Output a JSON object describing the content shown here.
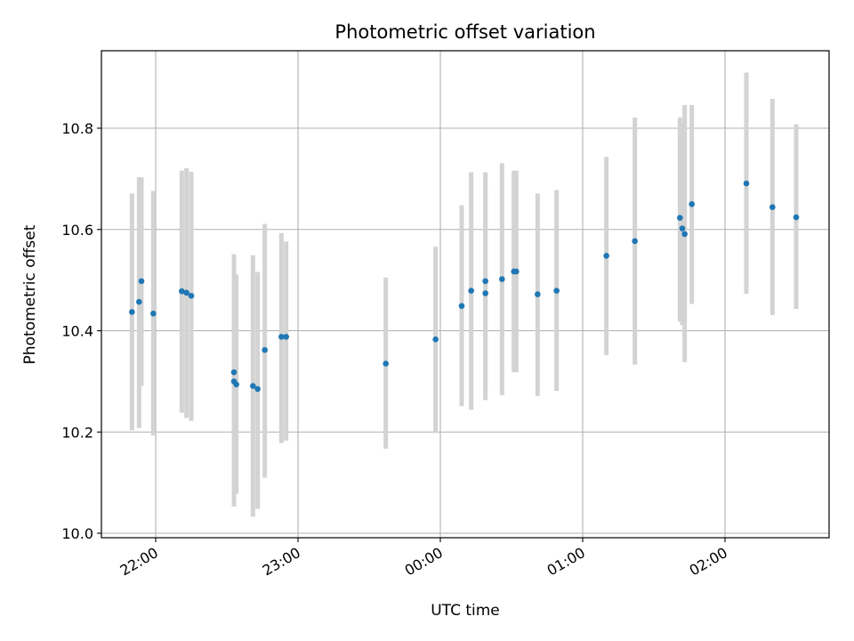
{
  "chart_data": {
    "type": "scatter",
    "title": "Photometric offset variation",
    "xlabel": "UTC time",
    "ylabel": "Photometric offset",
    "x_ticks": [
      "22:00",
      "23:00",
      "00:00",
      "01:00",
      "02:00"
    ],
    "y_ticks": [
      "10.0",
      "10.2",
      "10.4",
      "10.6",
      "10.8"
    ],
    "y_tick_values": [
      10.0,
      10.2,
      10.4,
      10.6,
      10.8
    ],
    "grid": true,
    "colors": {
      "point": "#1f77b4",
      "errorbar": "#d3d3d3",
      "grid": "#b0b0b0"
    },
    "series": [
      {
        "x": [
          "21:50",
          "21:53",
          "21:54",
          "21:59",
          "22:11",
          "22:13",
          "22:15",
          "22:33",
          "22:33",
          "22:34",
          "22:41",
          "22:43",
          "22:46",
          "22:53",
          "22:55",
          "23:37",
          "23:58",
          "00:09",
          "00:13",
          "00:19",
          "00:19",
          "00:26",
          "00:31",
          "00:32",
          "00:41",
          "00:49",
          "01:10",
          "01:22",
          "01:41",
          "01:42",
          "01:43",
          "01:46",
          "02:09",
          "02:20",
          "02:30"
        ],
        "y": [
          10.437,
          10.457,
          10.498,
          10.434,
          10.478,
          10.475,
          10.469,
          10.318,
          10.3,
          10.294,
          10.291,
          10.285,
          10.362,
          10.388,
          10.388,
          10.335,
          10.383,
          10.449,
          10.479,
          10.474,
          10.498,
          10.502,
          10.517,
          10.517,
          10.472,
          10.479,
          10.548,
          10.577,
          10.623,
          10.602,
          10.591,
          10.65,
          10.691,
          10.644,
          10.624
        ],
        "yerr_low": [
          10.203,
          10.208,
          10.291,
          10.193,
          10.238,
          10.228,
          10.222,
          10.053,
          10.078,
          10.078,
          10.033,
          10.048,
          10.11,
          10.178,
          10.183,
          10.167,
          10.198,
          10.251,
          10.244,
          10.263,
          10.283,
          10.273,
          10.318,
          10.318,
          10.271,
          10.281,
          10.352,
          10.333,
          10.418,
          10.411,
          10.338,
          10.453,
          10.473,
          10.431,
          10.443
        ],
        "yerr_high": [
          10.671,
          10.703,
          10.703,
          10.676,
          10.716,
          10.721,
          10.714,
          10.551,
          10.511,
          10.511,
          10.549,
          10.516,
          10.611,
          10.593,
          10.576,
          10.505,
          10.566,
          10.648,
          10.713,
          10.683,
          10.713,
          10.731,
          10.716,
          10.716,
          10.671,
          10.678,
          10.743,
          10.821,
          10.821,
          10.808,
          10.846,
          10.846,
          10.91,
          10.858,
          10.808
        ]
      }
    ]
  }
}
